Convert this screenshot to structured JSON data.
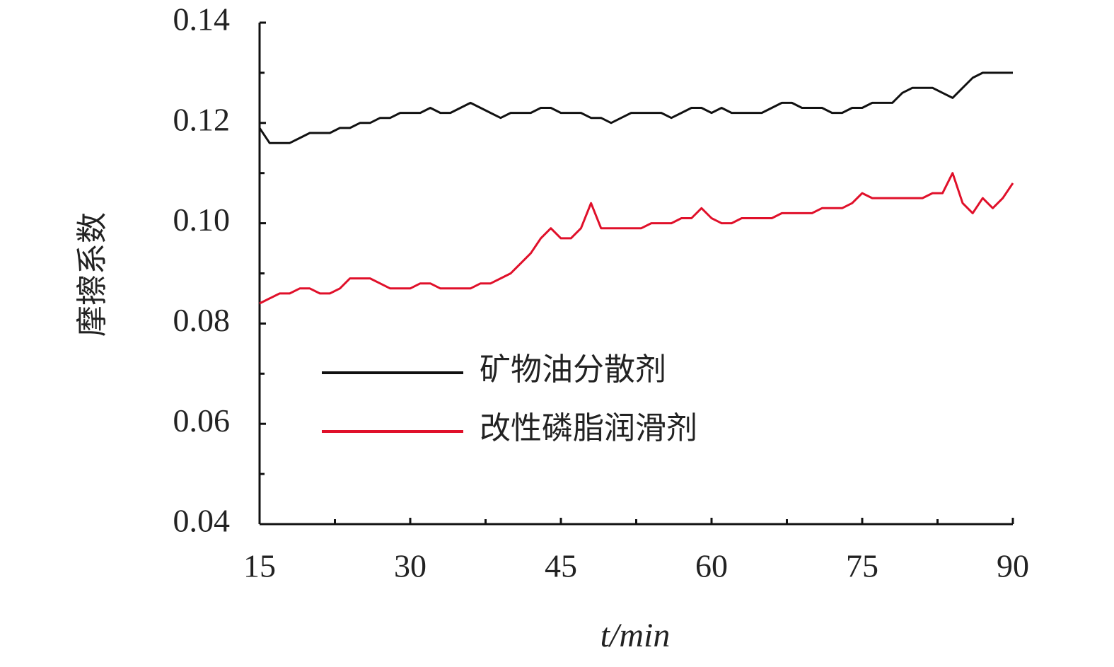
{
  "chart_data": {
    "type": "line",
    "x_label": "t/min",
    "y_label": "摩擦系数",
    "x": [
      15,
      16,
      17,
      18,
      19,
      20,
      21,
      22,
      23,
      24,
      25,
      26,
      27,
      28,
      29,
      30,
      31,
      32,
      33,
      34,
      35,
      36,
      37,
      38,
      39,
      40,
      41,
      42,
      43,
      44,
      45,
      46,
      47,
      48,
      49,
      50,
      51,
      52,
      53,
      54,
      55,
      56,
      57,
      58,
      59,
      60,
      61,
      62,
      63,
      64,
      65,
      66,
      67,
      68,
      69,
      70,
      71,
      72,
      73,
      74,
      75,
      76,
      77,
      78,
      79,
      80,
      81,
      82,
      83,
      84,
      85,
      86,
      87,
      88,
      89,
      90
    ],
    "series": [
      {
        "name": "矿物油分散剂",
        "color": "#111111",
        "values": [
          0.119,
          0.116,
          0.116,
          0.116,
          0.117,
          0.118,
          0.118,
          0.118,
          0.119,
          0.119,
          0.12,
          0.12,
          0.121,
          0.121,
          0.122,
          0.122,
          0.122,
          0.123,
          0.122,
          0.122,
          0.123,
          0.124,
          0.123,
          0.122,
          0.121,
          0.122,
          0.122,
          0.122,
          0.123,
          0.123,
          0.122,
          0.122,
          0.122,
          0.121,
          0.121,
          0.12,
          0.121,
          0.122,
          0.122,
          0.122,
          0.122,
          0.121,
          0.122,
          0.123,
          0.123,
          0.122,
          0.123,
          0.122,
          0.122,
          0.122,
          0.122,
          0.123,
          0.124,
          0.124,
          0.123,
          0.123,
          0.123,
          0.122,
          0.122,
          0.123,
          0.123,
          0.124,
          0.124,
          0.124,
          0.126,
          0.127,
          0.127,
          0.127,
          0.126,
          0.125,
          0.127,
          0.129,
          0.13,
          0.13,
          0.13,
          0.13
        ]
      },
      {
        "name": "改性磷脂润滑剂",
        "color": "#e0102a",
        "values": [
          0.084,
          0.085,
          0.086,
          0.086,
          0.087,
          0.087,
          0.086,
          0.086,
          0.087,
          0.089,
          0.089,
          0.089,
          0.088,
          0.087,
          0.087,
          0.087,
          0.088,
          0.088,
          0.087,
          0.087,
          0.087,
          0.087,
          0.088,
          0.088,
          0.089,
          0.09,
          0.092,
          0.094,
          0.097,
          0.099,
          0.097,
          0.097,
          0.099,
          0.104,
          0.099,
          0.099,
          0.099,
          0.099,
          0.099,
          0.1,
          0.1,
          0.1,
          0.101,
          0.101,
          0.103,
          0.101,
          0.1,
          0.1,
          0.101,
          0.101,
          0.101,
          0.101,
          0.102,
          0.102,
          0.102,
          0.102,
          0.103,
          0.103,
          0.103,
          0.104,
          0.106,
          0.105,
          0.105,
          0.105,
          0.105,
          0.105,
          0.105,
          0.106,
          0.106,
          0.11,
          0.104,
          0.102,
          0.105,
          0.103,
          0.105,
          0.108
        ]
      }
    ],
    "xlim": [
      15,
      90
    ],
    "xticks": [
      15,
      30,
      45,
      60,
      75,
      90
    ],
    "minor_xticks": [
      22.5,
      37.5,
      52.5,
      67.5,
      82.5
    ],
    "ylim": [
      0.04,
      0.14
    ],
    "yticks": [
      0.04,
      0.06,
      0.08,
      {
        "value": 0.1,
        "label": "0.10"
      },
      0.12,
      0.14
    ],
    "minor_yticks": [
      0.05,
      0.07,
      0.09,
      0.11,
      0.13
    ]
  }
}
